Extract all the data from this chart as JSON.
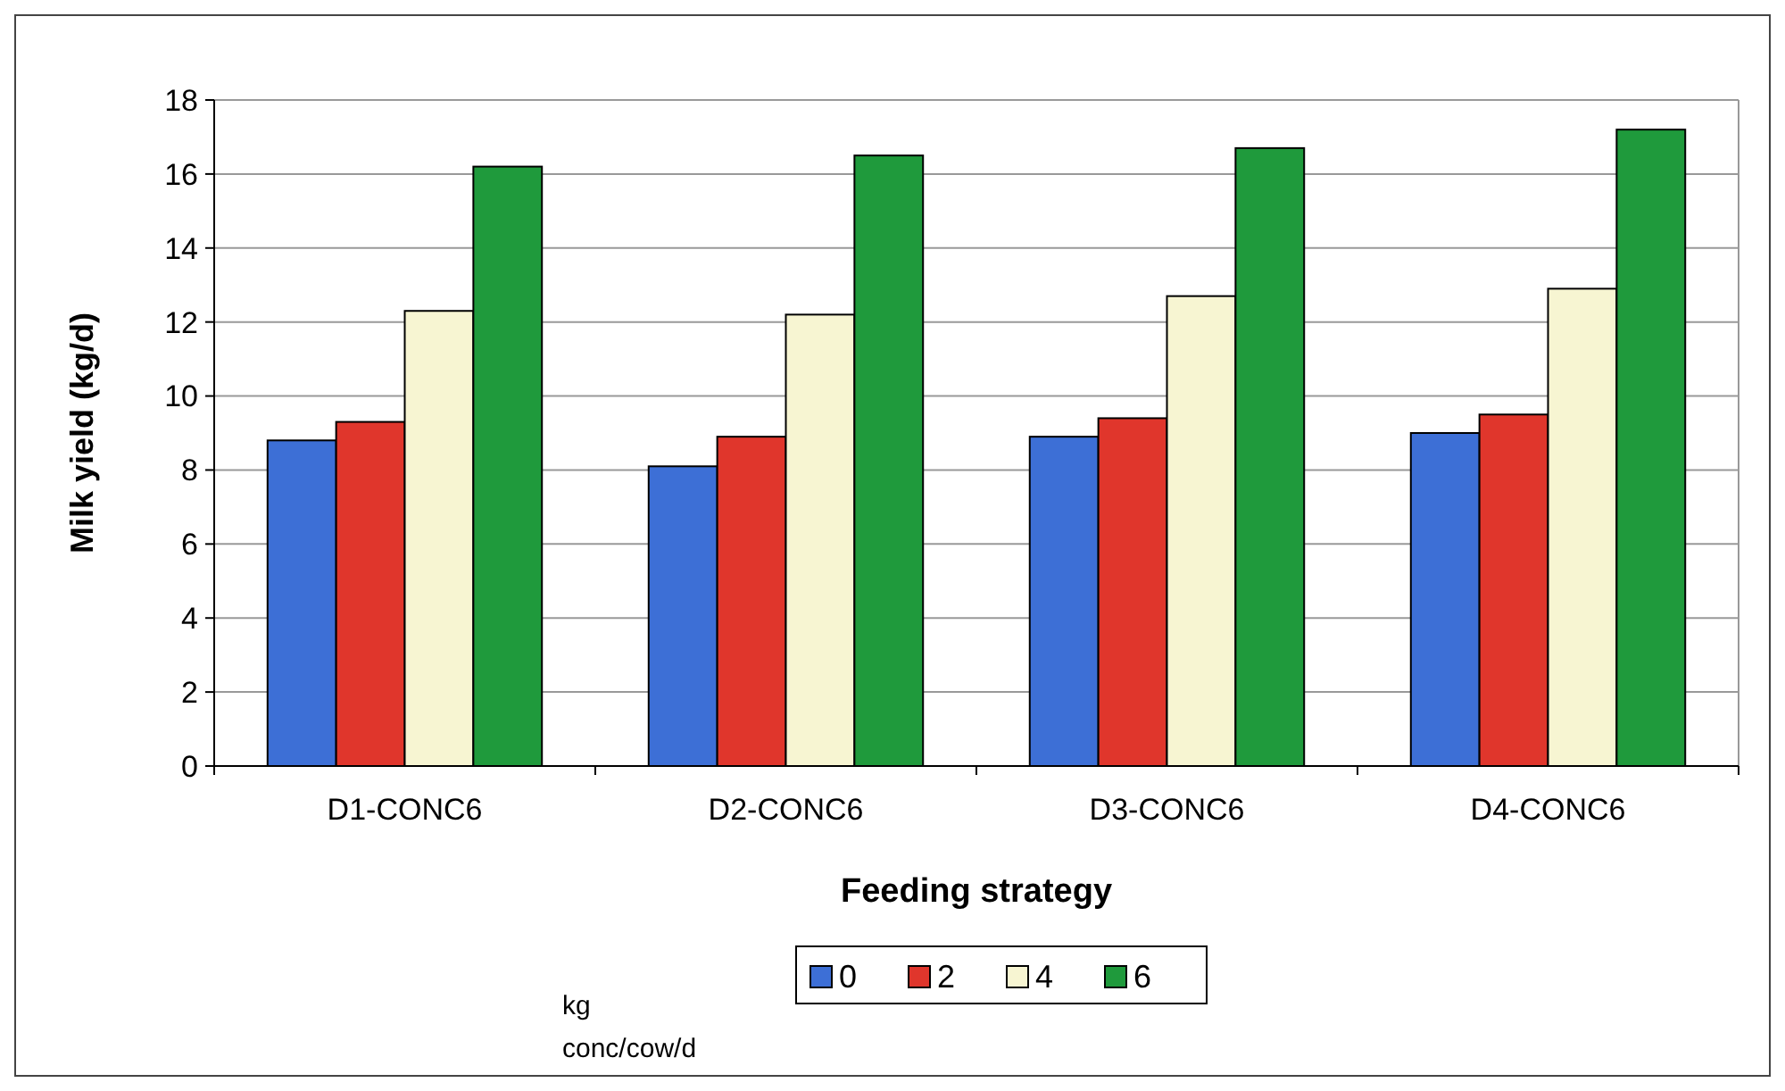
{
  "chart_data": {
    "type": "bar",
    "xlabel": "Feeding strategy",
    "ylabel": "Milk yield (kg/d)",
    "legend_title": "kg conc/cow/d",
    "categories": [
      "D1-CONC6",
      "D2-CONC6",
      "D3-CONC6",
      "D4-CONC6"
    ],
    "series": [
      {
        "name": "0",
        "color": "#3d6fd6",
        "values": [
          8.8,
          8.1,
          8.9,
          9.0
        ]
      },
      {
        "name": "2",
        "color": "#e0362c",
        "values": [
          9.3,
          8.9,
          9.4,
          9.5
        ]
      },
      {
        "name": "4",
        "color": "#f7f5d2",
        "values": [
          12.3,
          12.2,
          12.7,
          12.9
        ]
      },
      {
        "name": "6",
        "color": "#1f9a3c",
        "values": [
          16.2,
          16.5,
          16.7,
          17.2
        ]
      }
    ],
    "ylim": [
      0,
      18
    ],
    "yticks": [
      0,
      2,
      4,
      6,
      8,
      10,
      12,
      14,
      16,
      18
    ],
    "grid": "y",
    "legend": "bottom"
  }
}
